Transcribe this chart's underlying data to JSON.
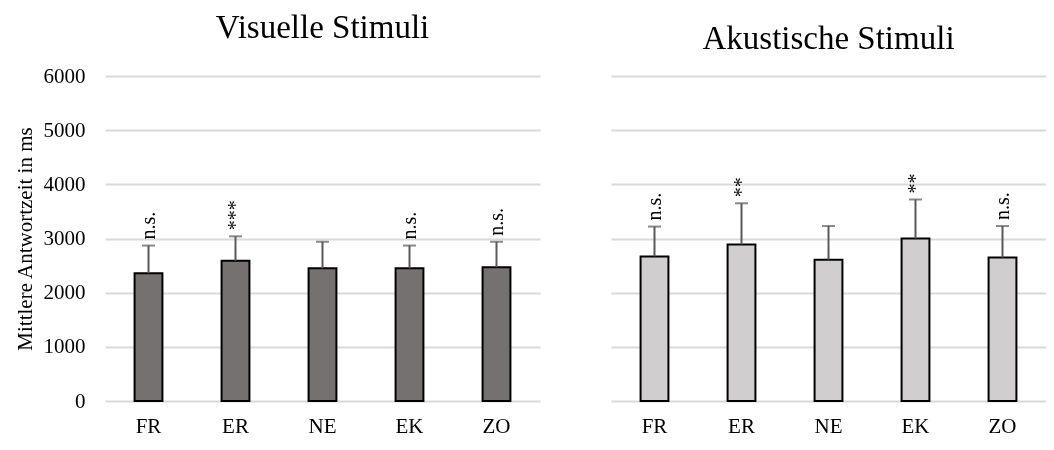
{
  "chart_data": [
    {
      "type": "bar",
      "title": "Visuelle Stimuli",
      "ylabel": "Mittlere Antwortzeit in ms",
      "categories": [
        "FR",
        "ER",
        "NE",
        "EK",
        "ZO"
      ],
      "values": [
        2360,
        2590,
        2450,
        2450,
        2470
      ],
      "color": "#767171",
      "errors": [
        [
          2360,
          2870
        ],
        [
          2590,
          3040
        ],
        [
          2450,
          2940
        ],
        [
          2450,
          2870
        ],
        [
          2470,
          2940
        ]
      ],
      "ylim": [
        0,
        6000
      ],
      "yticks": [
        0,
        1000,
        2000,
        3000,
        4000,
        5000,
        6000
      ],
      "grid": "y",
      "annotations": [
        {
          "text": "n.s.",
          "x": "FR",
          "y": 2870
        },
        {
          "text": "***",
          "x": "ER",
          "y": 3040
        },
        {
          "text": "n.s.",
          "x": "EK",
          "y": 2870
        },
        {
          "text": "n.s.",
          "x": "ZO",
          "y": 2940
        }
      ]
    },
    {
      "type": "bar",
      "title": "Akustische Stimuli",
      "categories": [
        "FR",
        "ER",
        "NE",
        "EK",
        "ZO"
      ],
      "values": [
        2670,
        2890,
        2610,
        3000,
        2650
      ],
      "color": "#d0cece",
      "errors": [
        [
          2670,
          3220
        ],
        [
          2890,
          3650
        ],
        [
          2610,
          3230
        ],
        [
          3000,
          3720
        ],
        [
          2650,
          3230
        ]
      ],
      "ylim": [
        0,
        6000
      ],
      "yticks": [
        0,
        1000,
        2000,
        3000,
        4000,
        5000,
        6000
      ],
      "grid": "y",
      "tick_labels": "x",
      "annotations": [
        {
          "text": "n.s.",
          "x": "FR",
          "y": 3220
        },
        {
          "text": "**",
          "x": "ER",
          "y": 3650
        },
        {
          "text": "**",
          "x": "EK",
          "y": 3720
        },
        {
          "text": "n.s.",
          "x": "ZO",
          "y": 3230
        }
      ]
    }
  ]
}
